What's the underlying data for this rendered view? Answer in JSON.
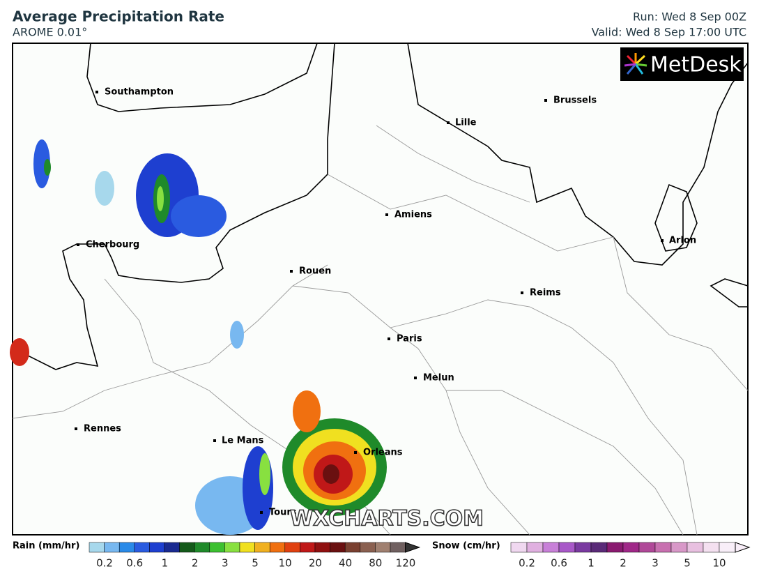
{
  "header": {
    "title": "Average Precipitation Rate",
    "model": "AROME 0.01°",
    "run": "Run: Wed 8 Sep 00Z",
    "valid": "Valid: Wed 8 Sep 17:00 UTC"
  },
  "logo": "MetDesk",
  "watermark": "WXCHARTS.COM",
  "cities": [
    "Southampton",
    "Brussels",
    "Lille",
    "Amiens",
    "Cherbourg",
    "Arlon",
    "Rouen",
    "Reims",
    "Paris",
    "Melun",
    "Rennes",
    "Le Mans",
    "Orleans",
    "Tours"
  ],
  "rain_legend": {
    "label": "Rain (mm/hr)",
    "ticks": [
      0.2,
      0.6,
      1,
      2,
      3,
      5,
      10,
      20,
      40,
      80,
      120
    ]
  },
  "snow_legend": {
    "label": "Snow (cm/hr)",
    "ticks": [
      0.2,
      0.6,
      1,
      2,
      3,
      5,
      10
    ]
  }
}
